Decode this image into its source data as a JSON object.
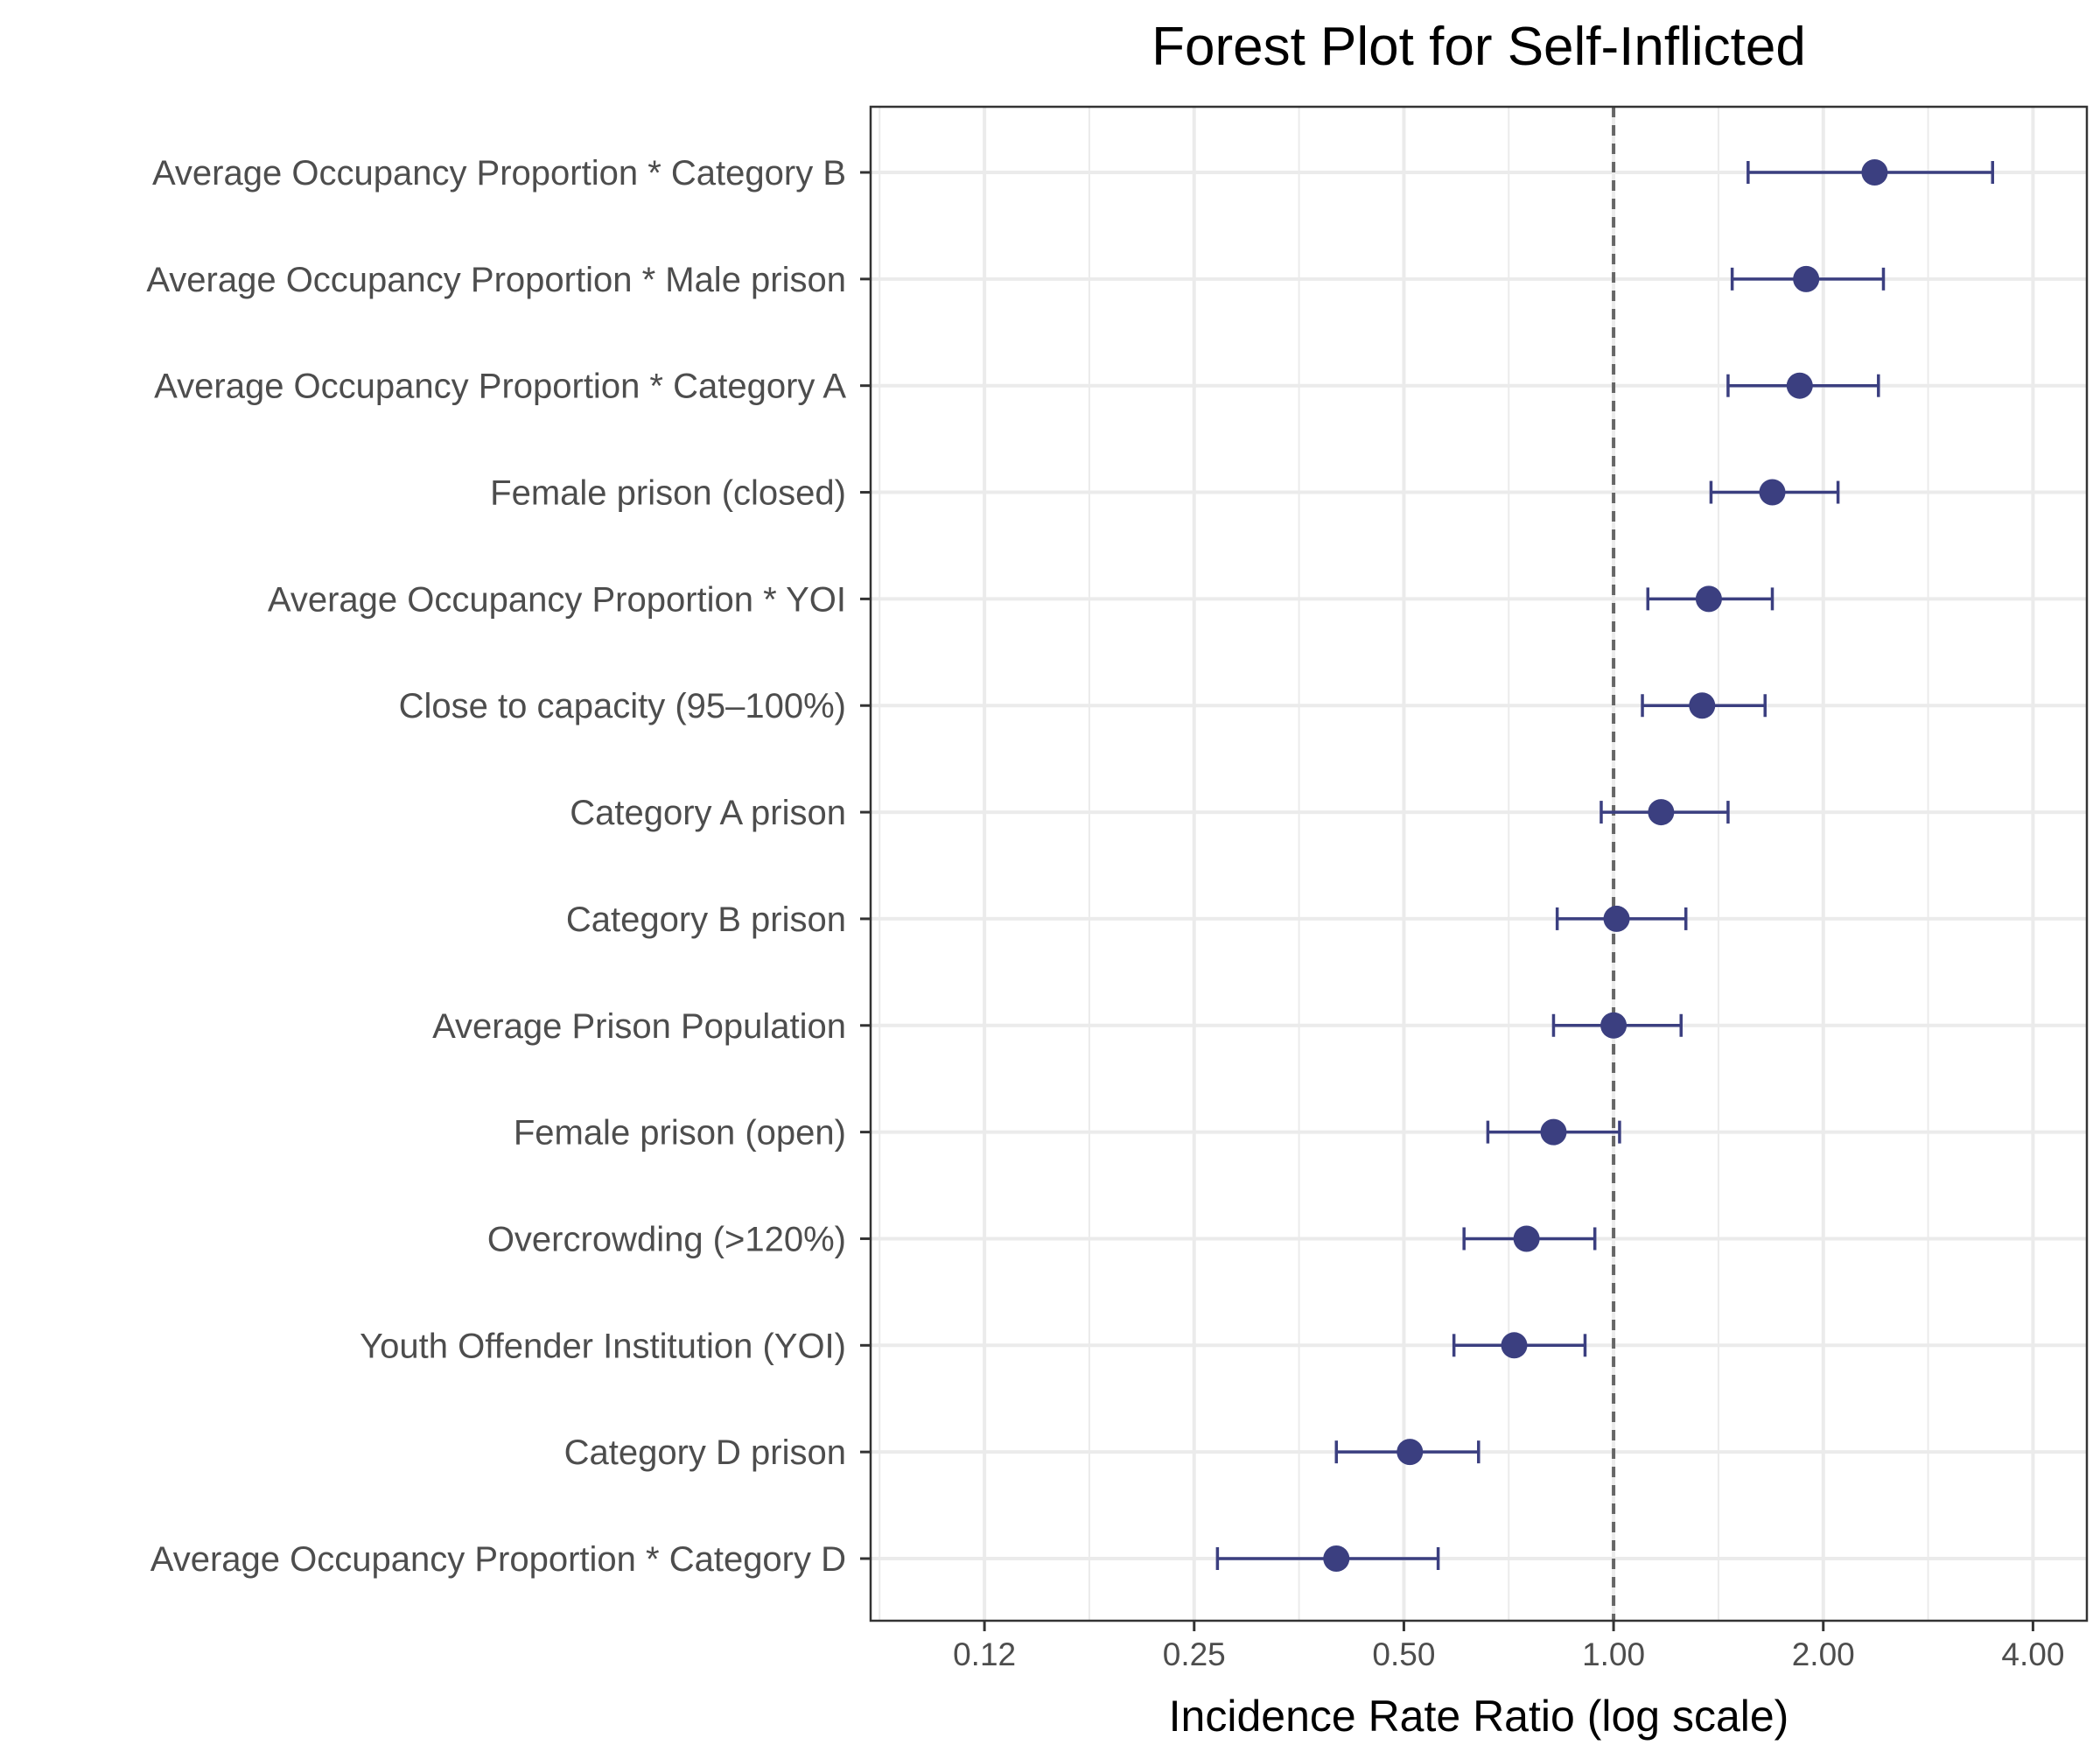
{
  "chart_data": {
    "type": "scatter",
    "subtype": "forest-plot",
    "title": "Forest Plot for Self-Inflicted",
    "xlabel": "Incidence Rate Ratio (log scale)",
    "ylabel": "",
    "x_scale": "log2",
    "xlim": [
      0.0858,
      4.78
    ],
    "x_ticks": [
      0.125,
      0.25,
      0.5,
      1,
      2,
      4
    ],
    "x_tick_labels": [
      "0.12",
      "0.25",
      "0.50",
      "1.00",
      "2.00",
      "4.00"
    ],
    "reference_line": 1.0,
    "grid": true,
    "point_color": "#3b3f80",
    "reference_line_color": "#666666",
    "terms": [
      {
        "label": "Average Occupancy Proportion * Category B",
        "estimate": 2.37,
        "lower": 1.56,
        "upper": 3.5
      },
      {
        "label": "Average Occupancy Proportion * Male prison",
        "estimate": 1.89,
        "lower": 1.48,
        "upper": 2.44
      },
      {
        "label": "Average Occupancy Proportion * Category A",
        "estimate": 1.85,
        "lower": 1.46,
        "upper": 2.4
      },
      {
        "label": "Female prison (closed)",
        "estimate": 1.69,
        "lower": 1.38,
        "upper": 2.1
      },
      {
        "label": "Average Occupancy Proportion * YOI",
        "estimate": 1.37,
        "lower": 1.12,
        "upper": 1.69
      },
      {
        "label": "Close to capacity (95–100%)",
        "estimate": 1.34,
        "lower": 1.1,
        "upper": 1.65
      },
      {
        "label": "Category A prison",
        "estimate": 1.17,
        "lower": 0.96,
        "upper": 1.46
      },
      {
        "label": "Category B prison",
        "estimate": 1.01,
        "lower": 0.83,
        "upper": 1.27
      },
      {
        "label": "Average Prison Population",
        "estimate": 1.0,
        "lower": 0.82,
        "upper": 1.25
      },
      {
        "label": "Female prison (open)",
        "estimate": 0.82,
        "lower": 0.66,
        "upper": 1.02
      },
      {
        "label": "Overcrowding (>120%)",
        "estimate": 0.75,
        "lower": 0.61,
        "upper": 0.94
      },
      {
        "label": "Youth Offender Institution (YOI)",
        "estimate": 0.72,
        "lower": 0.59,
        "upper": 0.91
      },
      {
        "label": "Category D prison",
        "estimate": 0.51,
        "lower": 0.4,
        "upper": 0.64
      },
      {
        "label": "Average Occupancy Proportion * Category D",
        "estimate": 0.4,
        "lower": 0.27,
        "upper": 0.56
      }
    ]
  }
}
